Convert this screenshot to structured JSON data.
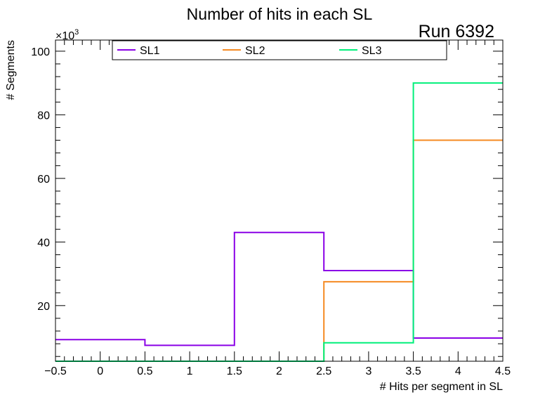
{
  "chart_data": {
    "type": "histogram-step",
    "title": "Number of hits in each SL",
    "run_label": "Run 6392",
    "xlabel": "# Hits per segment in SL",
    "ylabel": "# Segments",
    "y_exponent_label": "×10",
    "y_exponent_power": "3",
    "xlim": [
      -0.5,
      4.5
    ],
    "ylim": [
      2.5,
      103.5
    ],
    "x_ticks": [
      -0.5,
      0,
      0.5,
      1,
      1.5,
      2,
      2.5,
      3,
      3.5,
      4,
      4.5
    ],
    "x_tick_labels": [
      "−0.5",
      "0",
      "0.5",
      "1",
      "1.5",
      "2",
      "2.5",
      "3",
      "3.5",
      "4",
      "4.5"
    ],
    "y_ticks": [
      20,
      40,
      60,
      80,
      100
    ],
    "y_tick_labels": [
      "20",
      "40",
      "60",
      "80",
      "100"
    ],
    "bin_edges": [
      -0.5,
      0.5,
      1.5,
      2.5,
      3.5,
      4.5
    ],
    "series": [
      {
        "name": "SL1",
        "color": "#8a00e6",
        "values": [
          9.3,
          7.5,
          43.0,
          31.0,
          9.8
        ]
      },
      {
        "name": "SL2",
        "color": "#f58a22",
        "values": [
          2.5,
          2.5,
          2.5,
          27.5,
          72.0
        ]
      },
      {
        "name": "SL3",
        "color": "#00f07a",
        "values": [
          2.5,
          2.5,
          2.5,
          8.3,
          90.0
        ]
      }
    ]
  }
}
